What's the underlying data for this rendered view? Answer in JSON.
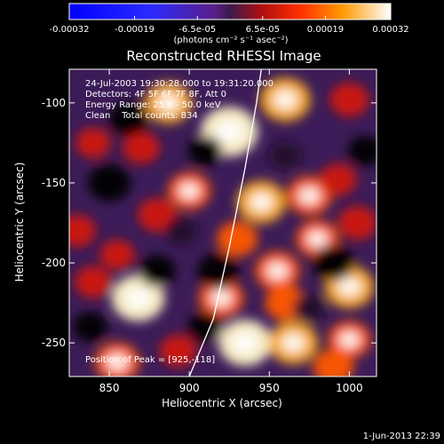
{
  "chart_data": {
    "type": "heatmap",
    "title": "Reconstructed RHESSI Image",
    "xlabel": "Heliocentric X (arcsec)",
    "ylabel": "Heliocentric Y (arcsec)",
    "xlim": [
      825,
      1017
    ],
    "ylim": [
      -271,
      -79
    ],
    "x_ticks": [
      850,
      900,
      950,
      1000
    ],
    "y_ticks": [
      -250,
      -200,
      -150,
      -100
    ],
    "colorbar": {
      "range": [
        -0.00032,
        0.00032
      ],
      "tick_labels": [
        "-0.00032",
        "-0.00019",
        "-6.5e-05",
        "6.5e-05",
        "0.00019",
        "0.00032"
      ],
      "unit_label": "(photons cm⁻² s⁻¹ asec⁻²)"
    },
    "annotations": [
      "24-Jul-2003 19:30:28.000 to 19:31:20.000",
      "Detectors: 4F 5F 6F 7F 8F, Att 0",
      "Energy Range: 25.0 - 50.0 keV",
      "Clean    Total counts: 834"
    ],
    "peak_label": "Position of Peak = [925,-118]",
    "peak": [
      925,
      -118
    ],
    "timestamp": "1-Jun-2013 22:39",
    "limb_curve": [
      [
        900,
        -271
      ],
      [
        915,
        -235
      ],
      [
        925,
        -190
      ],
      [
        935,
        -140
      ],
      [
        942,
        -100
      ],
      [
        945,
        -79
      ]
    ],
    "sources": [
      {
        "x": 925,
        "y": -118,
        "v": 0.00032
      },
      {
        "x": 887,
        "y": -100,
        "v": 0.00022
      },
      {
        "x": 870,
        "y": -128,
        "v": 0.00012
      },
      {
        "x": 840,
        "y": -125,
        "v": 0.0001
      },
      {
        "x": 900,
        "y": -155,
        "v": 0.00018
      },
      {
        "x": 880,
        "y": -170,
        "v": 0.00014
      },
      {
        "x": 945,
        "y": -162,
        "v": 0.00024
      },
      {
        "x": 975,
        "y": -158,
        "v": 0.0002
      },
      {
        "x": 993,
        "y": -148,
        "v": 0.00012
      },
      {
        "x": 960,
        "y": -98,
        "v": 0.00025
      },
      {
        "x": 1000,
        "y": -98,
        "v": 0.00014
      },
      {
        "x": 830,
        "y": -180,
        "v": 0.00012
      },
      {
        "x": 855,
        "y": -195,
        "v": 0.0001
      },
      {
        "x": 840,
        "y": -212,
        "v": 0.00012
      },
      {
        "x": 930,
        "y": -185,
        "v": 0.00016
      },
      {
        "x": 955,
        "y": -205,
        "v": 0.0002
      },
      {
        "x": 980,
        "y": -185,
        "v": 0.00018
      },
      {
        "x": 1005,
        "y": -175,
        "v": 0.00014
      },
      {
        "x": 868,
        "y": -222,
        "v": 0.00028
      },
      {
        "x": 920,
        "y": -222,
        "v": 0.0002
      },
      {
        "x": 960,
        "y": -225,
        "v": 0.00016
      },
      {
        "x": 1000,
        "y": -215,
        "v": 0.00024
      },
      {
        "x": 855,
        "y": -262,
        "v": 0.0002
      },
      {
        "x": 893,
        "y": -255,
        "v": 0.00012
      },
      {
        "x": 935,
        "y": -250,
        "v": 0.00028
      },
      {
        "x": 965,
        "y": -250,
        "v": 0.00024
      },
      {
        "x": 1000,
        "y": -248,
        "v": 0.00018
      },
      {
        "x": 990,
        "y": -265,
        "v": 0.00016
      },
      {
        "x": 850,
        "y": -150,
        "v": -0.00018
      },
      {
        "x": 862,
        "y": -110,
        "v": -0.00014
      },
      {
        "x": 910,
        "y": -130,
        "v": -0.0001
      },
      {
        "x": 918,
        "y": -205,
        "v": -0.00016
      },
      {
        "x": 880,
        "y": -205,
        "v": -0.00012
      },
      {
        "x": 990,
        "y": -200,
        "v": -0.00016
      },
      {
        "x": 1010,
        "y": -130,
        "v": -0.0001
      },
      {
        "x": 960,
        "y": -133,
        "v": -8e-05
      },
      {
        "x": 895,
        "y": -180,
        "v": -8e-05
      },
      {
        "x": 838,
        "y": -240,
        "v": -0.0001
      },
      {
        "x": 910,
        "y": -240,
        "v": -0.0001
      },
      {
        "x": 975,
        "y": -228,
        "v": -8e-05
      }
    ]
  }
}
